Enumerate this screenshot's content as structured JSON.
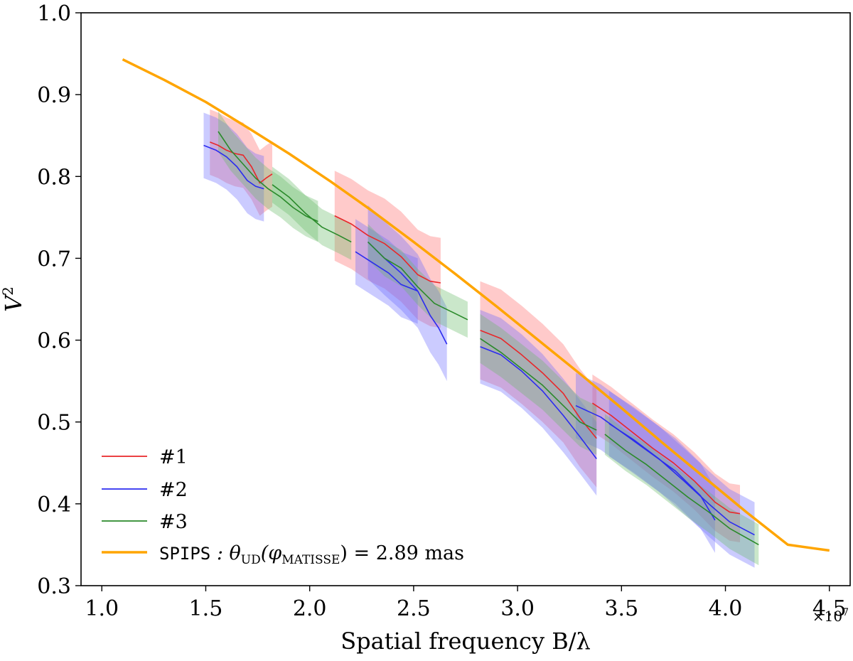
{
  "chart_data": {
    "type": "line",
    "xlabel": "Spatial frequency B/λ",
    "ylabel": "V",
    "ylabel_sup": "2",
    "x_offset_base": "×10",
    "x_offset_exp": "7",
    "xlim": [
      0.9,
      4.6
    ],
    "ylim": [
      0.3,
      1.0
    ],
    "xticks": [
      1.0,
      1.5,
      2.0,
      2.5,
      3.0,
      3.5,
      4.0,
      4.5
    ],
    "xtick_labels": [
      "1.0",
      "1.5",
      "2.0",
      "2.5",
      "3.0",
      "3.5",
      "4.0",
      "4.5"
    ],
    "yticks": [
      0.3,
      0.4,
      0.5,
      0.6,
      0.7,
      0.8,
      0.9,
      1.0
    ],
    "ytick_labels": [
      "0.3",
      "0.4",
      "0.5",
      "0.6",
      "0.7",
      "0.8",
      "0.9",
      "1.0"
    ],
    "legend_position": "lower-left",
    "grid": false,
    "series": [
      {
        "name": "#1",
        "color": "#e8272a",
        "band_color": "#ff6666",
        "segments": [
          {
            "x": [
              1.52,
              1.56,
              1.6,
              1.64,
              1.68,
              1.72,
              1.76,
              1.79,
              1.82
            ],
            "y": [
              0.842,
              0.838,
              0.832,
              0.828,
              0.826,
              0.812,
              0.792,
              0.798,
              0.803
            ],
            "err": 0.04
          },
          {
            "x": [
              2.12,
              2.2,
              2.28,
              2.36,
              2.44,
              2.52,
              2.58,
              2.63
            ],
            "y": [
              0.752,
              0.742,
              0.728,
              0.718,
              0.702,
              0.68,
              0.672,
              0.67
            ],
            "err": 0.055
          },
          {
            "x": [
              2.82,
              2.92,
              3.02,
              3.12,
              3.22,
              3.3,
              3.38
            ],
            "y": [
              0.612,
              0.602,
              0.582,
              0.56,
              0.535,
              0.505,
              0.48
            ],
            "err": 0.06
          },
          {
            "x": [
              3.36,
              3.45,
              3.55,
              3.65,
              3.75,
              3.85,
              3.95,
              4.02,
              4.07
            ],
            "y": [
              0.523,
              0.508,
              0.488,
              0.468,
              0.45,
              0.428,
              0.402,
              0.39,
              0.388
            ],
            "err": 0.035
          }
        ]
      },
      {
        "name": "#2",
        "color": "#2b2bf0",
        "band_color": "#6a6aff",
        "segments": [
          {
            "x": [
              1.49,
              1.55,
              1.6,
              1.65,
              1.7,
              1.74,
              1.78
            ],
            "y": [
              0.838,
              0.832,
              0.824,
              0.812,
              0.795,
              0.788,
              0.785
            ],
            "err": 0.04
          },
          {
            "x": [
              2.28,
              2.36,
              2.44,
              2.52,
              2.58,
              2.62,
              2.66
            ],
            "y": [
              0.72,
              0.7,
              0.682,
              0.66,
              0.63,
              0.615,
              0.595
            ],
            "err": 0.045
          },
          {
            "x": [
              2.22,
              2.3,
              2.38,
              2.44,
              2.52
            ],
            "y": [
              0.708,
              0.695,
              0.682,
              0.668,
              0.66
            ],
            "err": 0.04
          },
          {
            "x": [
              2.82,
              2.92,
              3.02,
              3.12,
              3.22,
              3.3,
              3.38
            ],
            "y": [
              0.592,
              0.582,
              0.562,
              0.538,
              0.508,
              0.482,
              0.455
            ],
            "err": 0.045
          },
          {
            "x": [
              3.28,
              3.4,
              3.52,
              3.64,
              3.76,
              3.88,
              3.95
            ],
            "y": [
              0.52,
              0.506,
              0.484,
              0.462,
              0.44,
              0.41,
              0.38
            ],
            "err": 0.04
          },
          {
            "x": [
              3.44,
              3.56,
              3.68,
              3.8,
              3.92,
              4.02,
              4.14
            ],
            "y": [
              0.498,
              0.478,
              0.455,
              0.428,
              0.4,
              0.378,
              0.362
            ],
            "err": 0.04
          }
        ]
      },
      {
        "name": "#3",
        "color": "#2a8a2a",
        "band_color": "#66bb66",
        "segments": [
          {
            "x": [
              1.56,
              1.62,
              1.68,
              1.74,
              1.8,
              1.86,
              1.92,
              1.98,
              2.04
            ],
            "y": [
              0.855,
              0.832,
              0.815,
              0.798,
              0.785,
              0.775,
              0.762,
              0.752,
              0.745
            ],
            "err": 0.025
          },
          {
            "x": [
              1.82,
              1.9,
              1.98,
              2.06,
              2.14,
              2.2
            ],
            "y": [
              0.79,
              0.775,
              0.755,
              0.738,
              0.728,
              0.72
            ],
            "err": 0.022
          },
          {
            "x": [
              2.28,
              2.36,
              2.44,
              2.52,
              2.6,
              2.68,
              2.76
            ],
            "y": [
              0.72,
              0.7,
              0.688,
              0.665,
              0.645,
              0.635,
              0.625
            ],
            "err": 0.022
          },
          {
            "x": [
              2.82,
              2.92,
              3.02,
              3.12,
              3.22,
              3.3,
              3.38
            ],
            "y": [
              0.602,
              0.585,
              0.565,
              0.545,
              0.52,
              0.5,
              0.49
            ],
            "err": 0.03
          },
          {
            "x": [
              3.42,
              3.52,
              3.62,
              3.72,
              3.82,
              3.92,
              4.02,
              4.16
            ],
            "y": [
              0.485,
              0.465,
              0.448,
              0.428,
              0.408,
              0.39,
              0.37,
              0.35
            ],
            "err": 0.025
          }
        ]
      }
    ],
    "model": {
      "name_code": "SPIPS",
      "name_rest": " : θ",
      "name_sub1": "UD",
      "name_mid": "(φ",
      "name_sub2": "MATISSE",
      "name_end": ") = 2.89 mas",
      "color": "#ffa500",
      "x": [
        1.1,
        1.3,
        1.5,
        1.7,
        1.9,
        2.1,
        2.3,
        2.5,
        2.7,
        2.9,
        3.1,
        3.3,
        3.5,
        3.7,
        3.9,
        4.1,
        4.3,
        4.5
      ],
      "y": [
        0.943,
        0.918,
        0.891,
        0.86,
        0.828,
        0.794,
        0.758,
        0.72,
        0.681,
        0.641,
        0.6,
        0.559,
        0.517,
        0.474,
        0.432,
        0.39,
        0.35,
        0.343
      ]
    }
  }
}
